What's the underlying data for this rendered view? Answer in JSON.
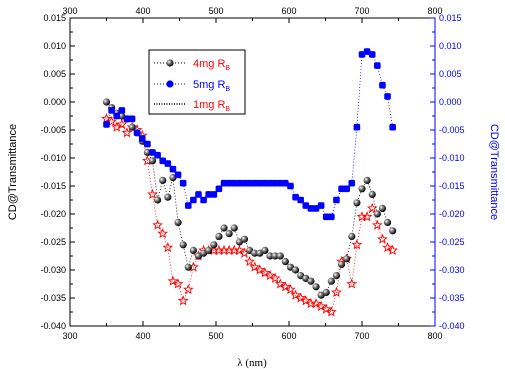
{
  "chart_data": {
    "type": "scatter",
    "title": "",
    "xlabel": "λ (nm)",
    "ylabel_left": "CD@Transmittance",
    "ylabel_right": "CD@Transmittance",
    "xlim": [
      300,
      800
    ],
    "ylim": [
      -0.04,
      0.015
    ],
    "xticks": [
      300,
      400,
      500,
      600,
      700,
      800
    ],
    "yticks": [
      -0.04,
      -0.035,
      -0.03,
      -0.025,
      -0.02,
      -0.015,
      -0.01,
      -0.005,
      0.0,
      0.005,
      0.01,
      0.015
    ],
    "xtick_labels": [
      "300",
      "400",
      "500",
      "600",
      "700",
      "800"
    ],
    "ytick_labels": [
      "-0.040",
      "-0.035",
      "-0.030",
      "-0.025",
      "-0.020",
      "-0.015",
      "-0.010",
      "-0.005",
      "0.000",
      "0.005",
      "0.010",
      "0.015"
    ],
    "grid": false,
    "legend_position": "top-left",
    "colors": {
      "left_axis": "#000000",
      "right_axis": "#0000ff"
    },
    "series": [
      {
        "name": "4mg R",
        "name_sub": "B",
        "marker": "sphere",
        "color": "#000000",
        "x": [
          350,
          357,
          364,
          371,
          378,
          385,
          392,
          399,
          406,
          413,
          420,
          427,
          434,
          441,
          448,
          455,
          462,
          469,
          476,
          483,
          490,
          497,
          504,
          511,
          518,
          525,
          532,
          539,
          546,
          553,
          560,
          567,
          574,
          581,
          588,
          595,
          602,
          609,
          616,
          623,
          630,
          637,
          644,
          651,
          658,
          665,
          672,
          679,
          686,
          693,
          700,
          707,
          714,
          721,
          728,
          735,
          742
        ],
        "y": [
          0.0,
          -0.001,
          -0.002,
          -0.0025,
          -0.003,
          -0.0045,
          -0.0055,
          -0.007,
          -0.009,
          -0.0105,
          -0.0175,
          -0.014,
          -0.017,
          -0.0135,
          -0.0215,
          -0.0255,
          -0.0295,
          -0.0265,
          -0.0275,
          -0.027,
          -0.0265,
          -0.0255,
          -0.024,
          -0.0225,
          -0.0235,
          -0.0225,
          -0.025,
          -0.0245,
          -0.0265,
          -0.027,
          -0.027,
          -0.0265,
          -0.0275,
          -0.0275,
          -0.0275,
          -0.0285,
          -0.0295,
          -0.03,
          -0.031,
          -0.0315,
          -0.032,
          -0.033,
          -0.0345,
          -0.034,
          -0.032,
          -0.031,
          -0.029,
          -0.028,
          -0.024,
          -0.018,
          -0.0155,
          -0.014,
          -0.0165,
          -0.02,
          -0.019,
          -0.0215,
          -0.023
        ]
      },
      {
        "name": "5mg R",
        "name_sub": "B",
        "marker": "square",
        "color": "#0000ff",
        "x": [
          350,
          357,
          364,
          371,
          378,
          385,
          392,
          399,
          406,
          413,
          420,
          427,
          434,
          441,
          448,
          455,
          462,
          469,
          476,
          483,
          490,
          497,
          504,
          511,
          518,
          525,
          532,
          539,
          546,
          553,
          560,
          567,
          574,
          581,
          588,
          595,
          602,
          609,
          616,
          623,
          630,
          637,
          644,
          651,
          658,
          665,
          672,
          679,
          686,
          693,
          700,
          707,
          714,
          721,
          728,
          735,
          742
        ],
        "y": [
          -0.004,
          -0.0015,
          -0.0025,
          -0.0015,
          -0.003,
          -0.003,
          -0.0055,
          -0.0065,
          -0.0075,
          -0.009,
          -0.0095,
          -0.0105,
          -0.011,
          -0.012,
          -0.013,
          -0.0145,
          -0.0185,
          -0.0175,
          -0.0165,
          -0.0175,
          -0.0165,
          -0.0165,
          -0.0155,
          -0.0145,
          -0.0145,
          -0.0145,
          -0.0145,
          -0.0145,
          -0.0145,
          -0.0145,
          -0.0145,
          -0.0145,
          -0.0145,
          -0.0145,
          -0.0145,
          -0.0145,
          -0.015,
          -0.017,
          -0.0175,
          -0.0185,
          -0.019,
          -0.019,
          -0.0185,
          -0.0205,
          -0.0205,
          -0.0175,
          -0.0155,
          -0.0155,
          -0.0145,
          -0.0045,
          0.0085,
          0.009,
          0.0085,
          0.0065,
          0.003,
          0.001,
          -0.0045
        ]
      },
      {
        "name": "1mg R",
        "name_sub": "B",
        "marker": "star",
        "color": "#ff0000",
        "x": [
          350,
          357,
          364,
          371,
          378,
          385,
          392,
          399,
          406,
          413,
          420,
          427,
          434,
          441,
          448,
          455,
          462,
          469,
          476,
          483,
          490,
          497,
          504,
          511,
          518,
          525,
          532,
          539,
          546,
          553,
          560,
          567,
          574,
          581,
          588,
          595,
          602,
          609,
          616,
          623,
          630,
          637,
          644,
          651,
          658,
          665,
          672,
          679,
          686,
          693,
          700,
          707,
          714,
          721,
          728,
          735,
          742
        ],
        "y": [
          -0.003,
          -0.0035,
          -0.0045,
          -0.004,
          -0.0055,
          -0.0045,
          -0.005,
          -0.006,
          -0.0105,
          -0.0165,
          -0.022,
          -0.0235,
          -0.026,
          -0.032,
          -0.0325,
          -0.0355,
          -0.0335,
          -0.0295,
          -0.0275,
          -0.0265,
          -0.0265,
          -0.0265,
          -0.0265,
          -0.0265,
          -0.0265,
          -0.0265,
          -0.0265,
          -0.027,
          -0.0285,
          -0.0295,
          -0.03,
          -0.0305,
          -0.031,
          -0.0315,
          -0.0325,
          -0.033,
          -0.0335,
          -0.0345,
          -0.035,
          -0.0355,
          -0.036,
          -0.036,
          -0.0365,
          -0.037,
          -0.0375,
          -0.034,
          -0.0285,
          -0.028,
          -0.0325,
          -0.0255,
          -0.0205,
          -0.0205,
          -0.019,
          -0.022,
          -0.0245,
          -0.026,
          -0.0265
        ]
      }
    ]
  }
}
